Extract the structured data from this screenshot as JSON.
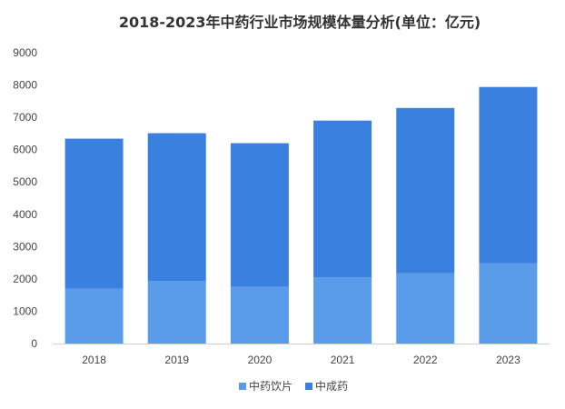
{
  "chart_data": {
    "type": "bar",
    "stacked": true,
    "title": "2018-2023年中药行业市场规模体量分析(单位：亿元)",
    "categories": [
      "2018",
      "2019",
      "2020",
      "2021",
      "2022",
      "2023"
    ],
    "series": [
      {
        "name": "中药饮片",
        "color": "#5b9cea",
        "values": [
          1700,
          1930,
          1760,
          2050,
          2170,
          2480
        ]
      },
      {
        "name": "中成药",
        "color": "#3a80df",
        "values": [
          4640,
          4580,
          4440,
          4850,
          5120,
          5460
        ]
      }
    ],
    "ylim": [
      0,
      9000
    ],
    "yticks": [
      0,
      1000,
      2000,
      3000,
      4000,
      5000,
      6000,
      7000,
      8000,
      9000
    ],
    "grid": false,
    "legend_position": "bottom-center"
  }
}
